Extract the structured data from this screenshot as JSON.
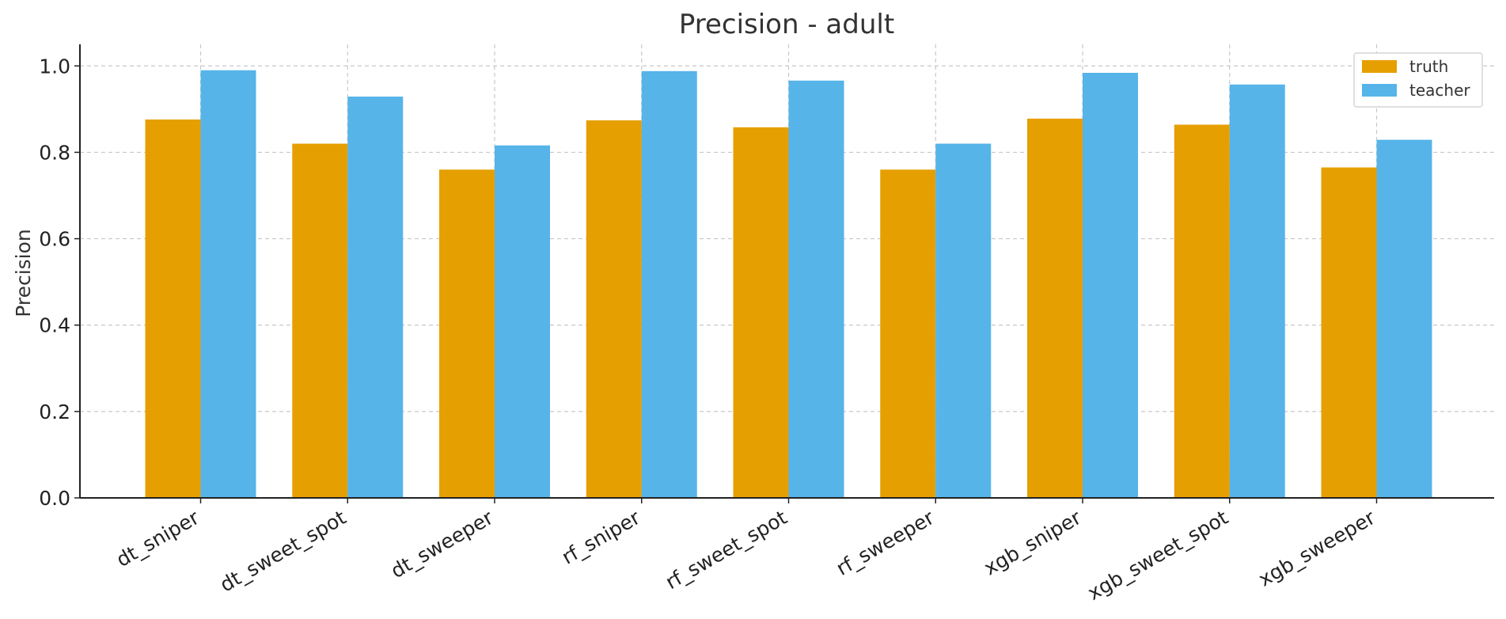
{
  "chart_data": {
    "type": "bar",
    "title": "Precision - adult",
    "xlabel": "",
    "ylabel": "Precision",
    "ylim": [
      0,
      1.05
    ],
    "yticks": [
      "0.0",
      "0.2",
      "0.4",
      "0.6",
      "0.8",
      "1.0"
    ],
    "grid": true,
    "legend_position": "top-right",
    "categories": [
      "dt_sniper",
      "dt_sweet_spot",
      "dt_sweeper",
      "rf_sniper",
      "rf_sweet_spot",
      "rf_sweeper",
      "xgb_sniper",
      "xgb_sweet_spot",
      "xgb_sweeper"
    ],
    "series": [
      {
        "name": "truth",
        "color": "#E69F00",
        "values": [
          0.876,
          0.82,
          0.76,
          0.874,
          0.858,
          0.76,
          0.878,
          0.864,
          0.765
        ]
      },
      {
        "name": "teacher",
        "color": "#56B4E9",
        "values": [
          0.99,
          0.929,
          0.816,
          0.988,
          0.966,
          0.82,
          0.984,
          0.957,
          0.829
        ]
      }
    ]
  }
}
